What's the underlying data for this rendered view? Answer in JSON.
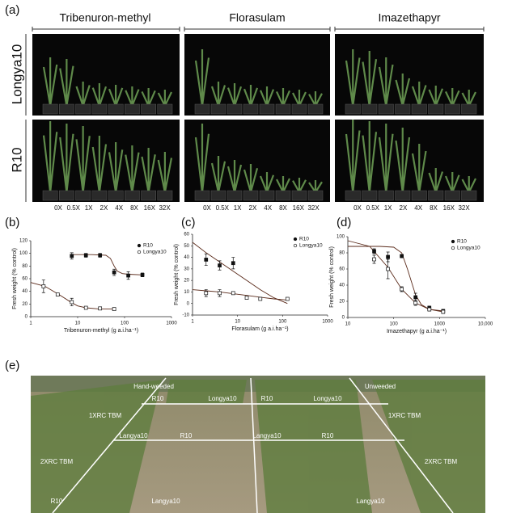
{
  "panel_a": {
    "label": "(a)",
    "columns": [
      "Tribenuron-methyl",
      "Florasulam",
      "Imazethapyr"
    ],
    "rows": [
      "Longya10",
      "R10"
    ],
    "doses": [
      "0X",
      "0.5X",
      "1X",
      "2X",
      "4X",
      "8X",
      "16X",
      "32X"
    ]
  },
  "chart_data": [
    {
      "type": "scatter",
      "panel": "(b)",
      "xlabel": "Tribenuron-methyl (g a.i.ha⁻¹)",
      "ylabel": "Fresh weight (% control)",
      "log_x": true,
      "xlim": [
        1,
        1000
      ],
      "xticks": [
        1,
        10,
        100,
        1000
      ],
      "ylim": [
        0,
        120
      ],
      "yticks": [
        0,
        20,
        40,
        60,
        80,
        100,
        120
      ],
      "legend": "upper right",
      "series": [
        {
          "name": "R10",
          "marker": "filled",
          "color": "#111111",
          "x": [
            7.5,
            15,
            30,
            60,
            120,
            240
          ],
          "values": [
            96,
            97,
            97,
            70,
            65,
            66
          ],
          "errors": [
            5,
            3,
            3,
            5,
            6,
            3
          ]
        },
        {
          "name": "Longya10",
          "marker": "open",
          "color": "#111111",
          "x": [
            1.875,
            3.75,
            7.5,
            15,
            30,
            60
          ],
          "values": [
            48,
            35,
            23,
            14,
            13,
            12
          ],
          "errors": [
            10,
            2,
            6,
            2,
            2,
            2
          ]
        }
      ],
      "fits": [
        {
          "color": "#5a2a1a",
          "x": [
            7.5,
            20,
            40,
            50,
            60,
            70,
            90,
            120,
            240
          ],
          "values": [
            98,
            98,
            97,
            92,
            80,
            72,
            68,
            67,
            66
          ]
        },
        {
          "color": "#5a2a1a",
          "x": [
            1,
            2,
            4,
            7.5,
            10,
            15,
            30,
            60
          ],
          "values": [
            54,
            48,
            35,
            22,
            17,
            14,
            12,
            12
          ]
        }
      ]
    },
    {
      "type": "scatter",
      "panel": "(c)",
      "xlabel": "Florasulam (g a.i.ha⁻¹)",
      "ylabel": "Fresh weight (% control)",
      "log_x": true,
      "xlim": [
        1,
        1000
      ],
      "xticks": [
        1,
        10,
        100,
        1000
      ],
      "ylim": [
        -10,
        60
      ],
      "yticks": [
        -10,
        0,
        10,
        20,
        30,
        40,
        50,
        60
      ],
      "legend": "upper right",
      "series": [
        {
          "name": "R10",
          "marker": "filled",
          "color": "#111111",
          "x": [
            2,
            4,
            8
          ],
          "values": [
            38,
            33,
            35
          ],
          "errors": [
            5,
            4,
            5
          ]
        },
        {
          "name": "Longya10",
          "marker": "open",
          "color": "#111111",
          "x": [
            2,
            4,
            8,
            16,
            32,
            128
          ],
          "values": [
            9,
            9,
            9,
            5,
            4,
            4
          ],
          "errors": [
            3,
            3,
            1,
            1,
            1,
            1
          ]
        }
      ],
      "fits": [
        {
          "color": "#5a2a1a",
          "x": [
            1,
            2,
            4,
            8,
            16,
            32,
            64,
            128
          ],
          "values": [
            53,
            44,
            36,
            28,
            20,
            12,
            5,
            0
          ]
        },
        {
          "color": "#5a2a1a",
          "x": [
            1,
            2,
            4,
            8,
            16,
            32,
            64,
            128
          ],
          "values": [
            12,
            11,
            10,
            8.5,
            7,
            5.5,
            4,
            3
          ]
        }
      ]
    },
    {
      "type": "scatter",
      "panel": "(d)",
      "xlabel": "Imazethapyr (g a.i.ha⁻¹)",
      "ylabel": "Fresh weight (% control)",
      "log_x": true,
      "xlim": [
        10,
        10000
      ],
      "xticks": [
        10,
        100,
        1000,
        {
          "value": 10000,
          "label": "10,000"
        }
      ],
      "ylim": [
        0,
        100
      ],
      "yticks": [
        0,
        20,
        40,
        60,
        80,
        100
      ],
      "legend": "upper right",
      "series": [
        {
          "name": "R10",
          "marker": "filled",
          "color": "#111111",
          "x": [
            37.5,
            75,
            150,
            300,
            600,
            1200
          ],
          "values": [
            82,
            75,
            76,
            25,
            12,
            8
          ],
          "errors": [
            3,
            6,
            2,
            5,
            2,
            2
          ]
        },
        {
          "name": "Longya10",
          "marker": "open",
          "color": "#111111",
          "x": [
            37.5,
            75,
            150,
            300,
            600,
            1200
          ],
          "values": [
            72,
            60,
            35,
            18,
            10,
            7
          ],
          "errors": [
            5,
            12,
            3,
            3,
            2,
            2
          ]
        }
      ],
      "fits": [
        {
          "color": "#5a2a1a",
          "x": [
            10,
            50,
            100,
            150,
            200,
            300,
            400,
            600,
            1200
          ],
          "values": [
            88,
            88,
            87,
            80,
            60,
            28,
            16,
            10,
            8
          ]
        },
        {
          "color": "#5a2a1a",
          "x": [
            10,
            30,
            75,
            150,
            300,
            600,
            1200
          ],
          "values": [
            95,
            88,
            62,
            35,
            18,
            10,
            7
          ]
        }
      ]
    }
  ],
  "panel_e": {
    "label": "(e)",
    "field_labels": [
      "Hand-weeded",
      "Unweeded",
      "R10",
      "Longya10",
      "R10",
      "Longya10",
      "1XRC TBM",
      "1XRC TBM",
      "Langya10",
      "R10",
      "Langya10",
      "R10",
      "2XRC TBM",
      "2XRC TBM",
      "R10",
      "Langya10",
      "Langya10"
    ]
  }
}
